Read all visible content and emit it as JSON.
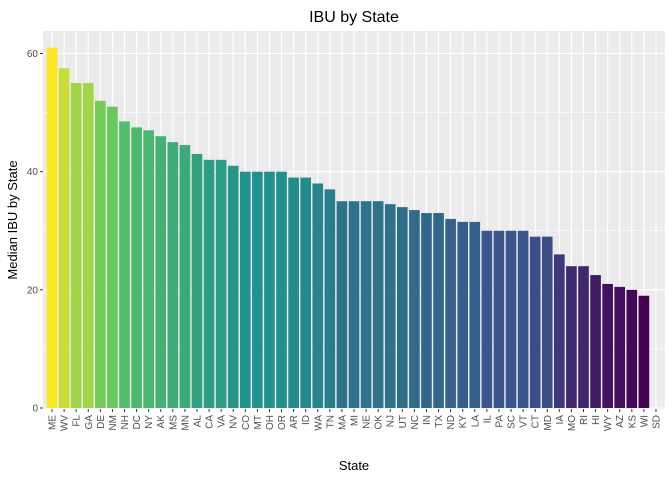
{
  "chart_data": {
    "type": "bar",
    "title": "IBU by State",
    "xlabel": "State",
    "ylabel": "Median IBU by State",
    "ylim": [
      0,
      62
    ],
    "yticks": [
      0,
      20,
      40,
      60
    ],
    "grid": true,
    "legend": "none",
    "color_scale": "viridis",
    "categories": [
      "ME",
      "WV",
      "FL",
      "GA",
      "DE",
      "NM",
      "NH",
      "DC",
      "NY",
      "AK",
      "MS",
      "MN",
      "AL",
      "CA",
      "VA",
      "NV",
      "CO",
      "MT",
      "OH",
      "OR",
      "AR",
      "ID",
      "WA",
      "TN",
      "MA",
      "MI",
      "NE",
      "OK",
      "NJ",
      "UT",
      "NC",
      "IN",
      "TX",
      "ND",
      "KY",
      "LA",
      "IL",
      "PA",
      "SC",
      "VT",
      "CT",
      "MD",
      "IA",
      "MO",
      "RI",
      "HI",
      "WY",
      "AZ",
      "KS",
      "WI",
      "SD"
    ],
    "values": [
      61,
      57.5,
      55,
      55,
      52,
      51,
      48.5,
      47.5,
      47,
      46,
      45,
      44.5,
      43,
      42,
      42,
      41,
      40,
      40,
      40,
      40,
      39,
      39,
      38,
      37,
      35,
      35,
      35,
      35,
      34.5,
      34,
      33.5,
      33,
      33,
      32,
      31.5,
      31.5,
      30,
      30,
      30,
      30,
      29,
      29,
      26,
      24,
      24,
      22.5,
      21,
      20.5,
      20,
      19,
      null
    ]
  },
  "colors": {
    "panel_bg": "#EBEBEB",
    "grid_major": "#FFFFFF",
    "tick_text": "#4D4D4D"
  }
}
